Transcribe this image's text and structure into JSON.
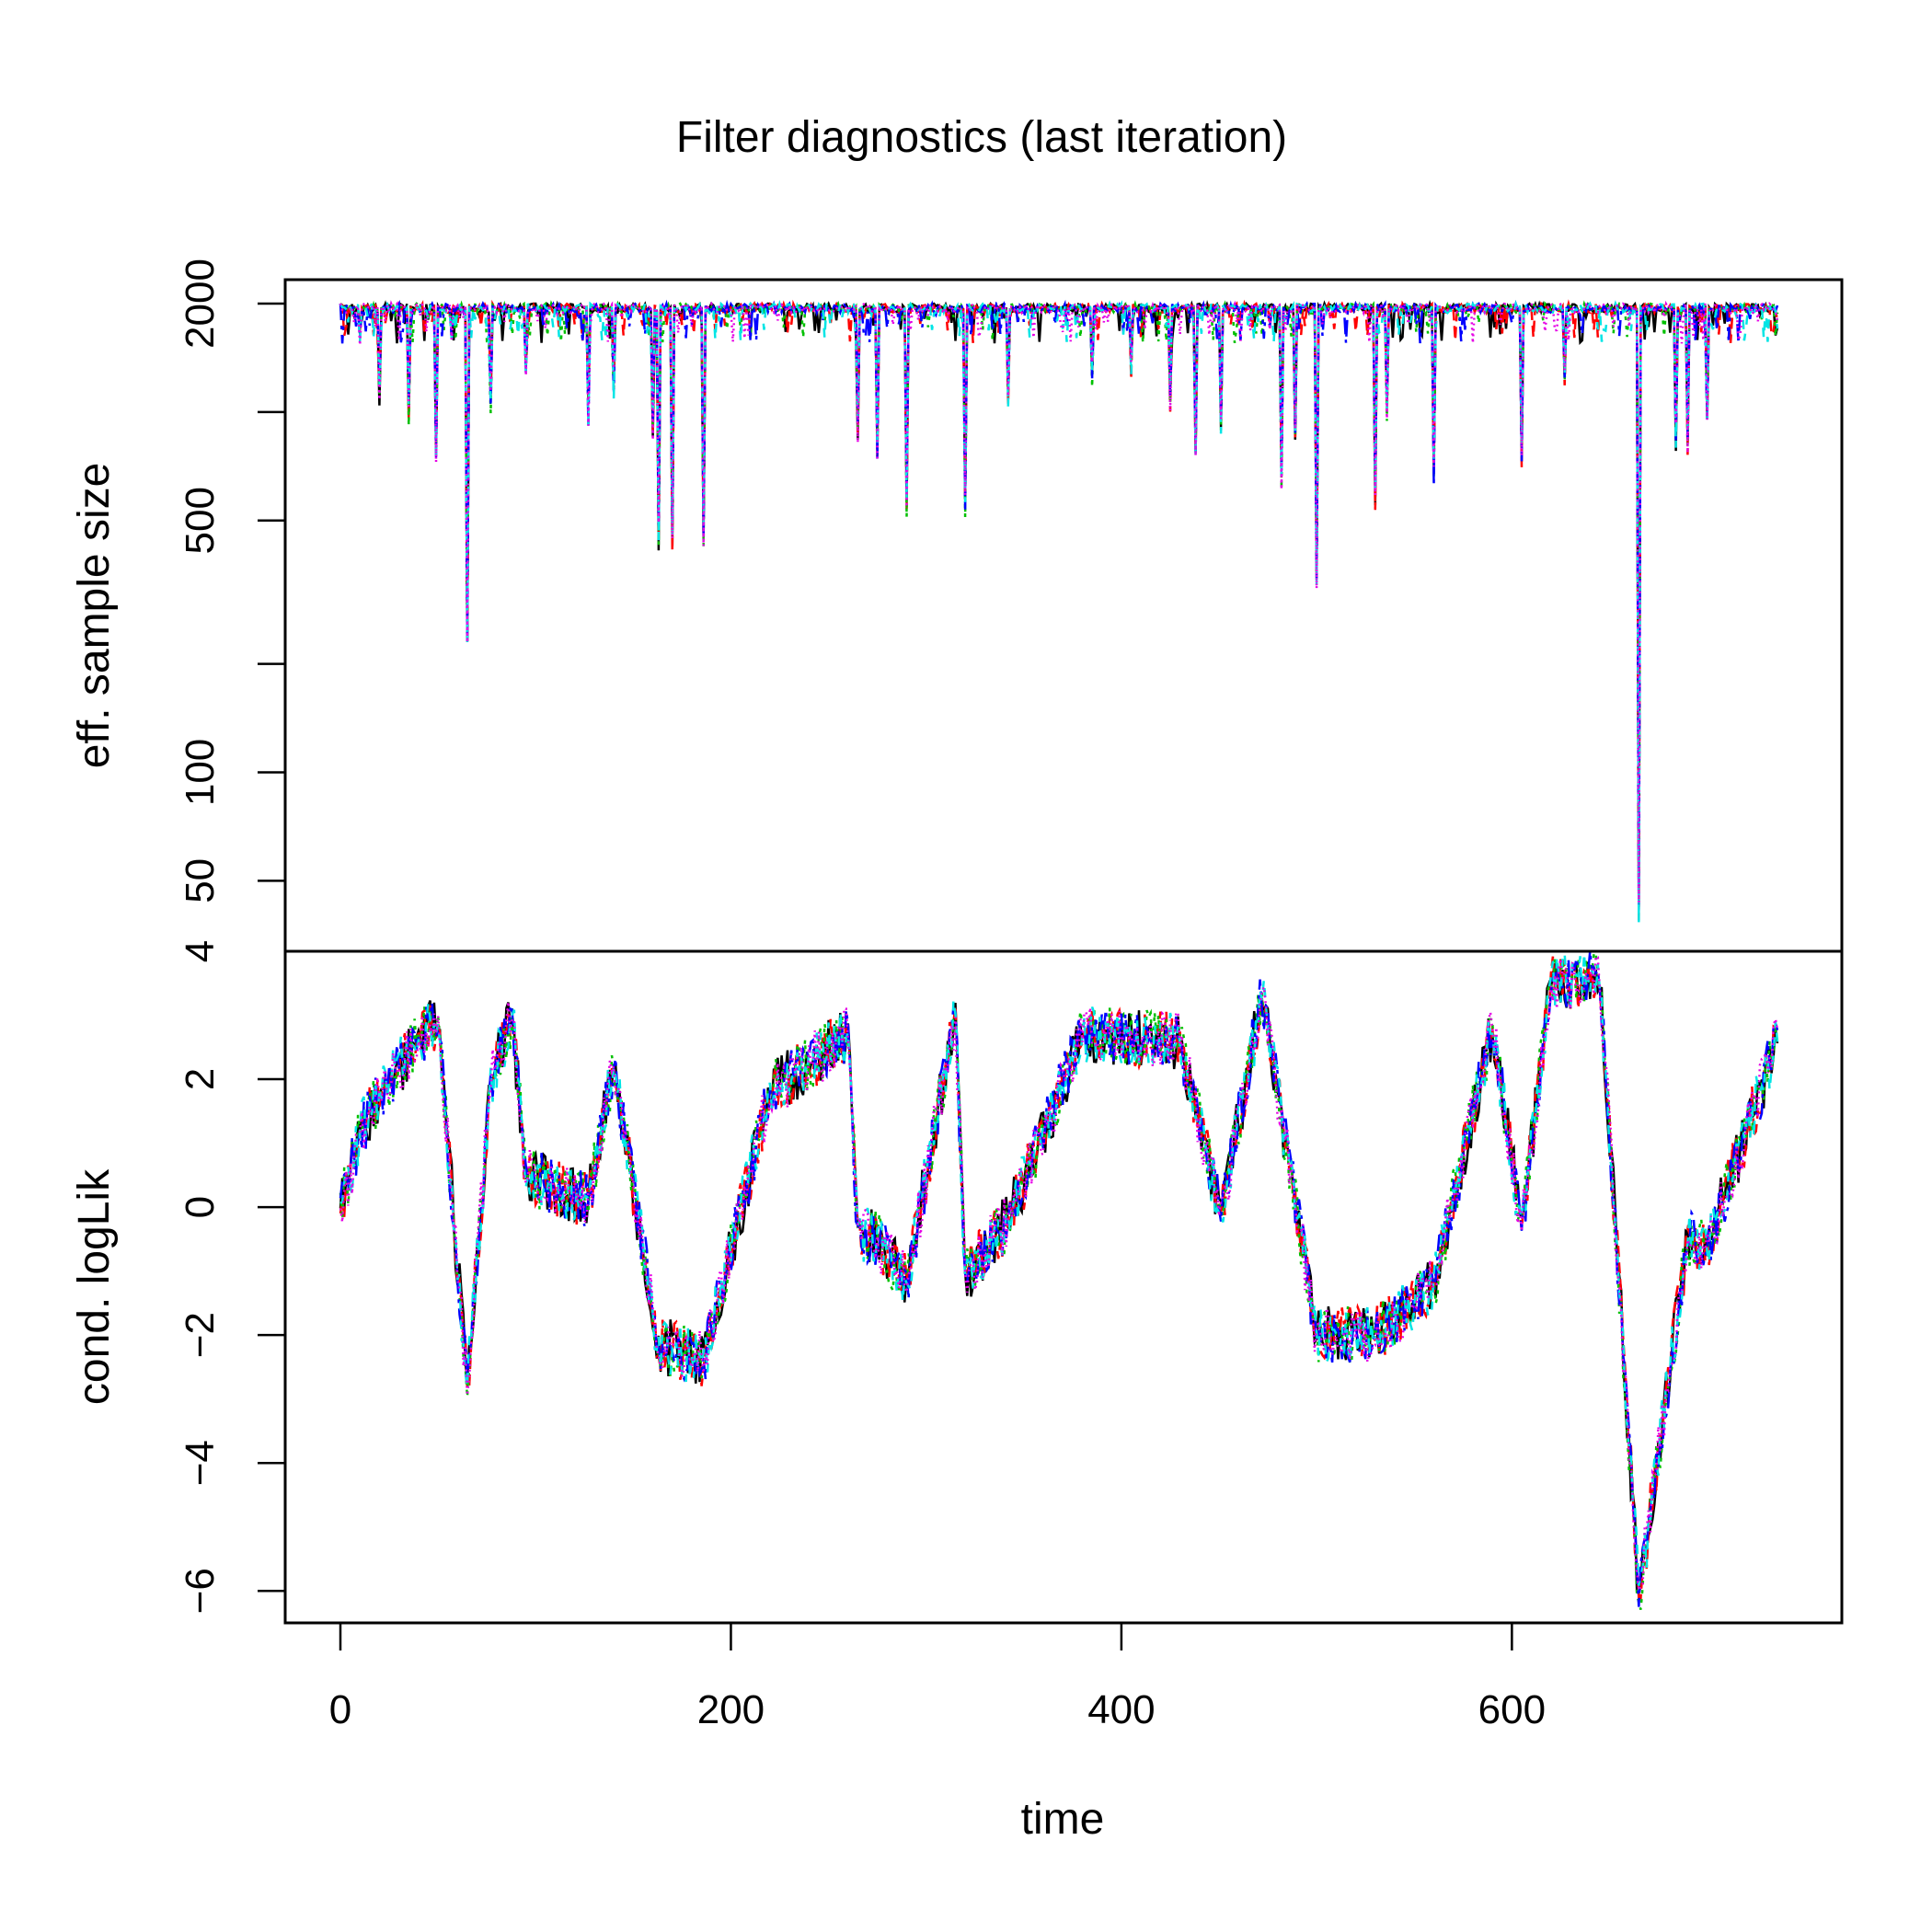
{
  "title": "Filter diagnostics (last iteration)",
  "colors": [
    "#000000",
    "#ff0000",
    "#00c000",
    "#0000ff",
    "#00e5e5",
    "#e500e5"
  ],
  "chart_data": [
    {
      "type": "line",
      "panel": "top",
      "ylabel": "eff. sample size",
      "xlabel": "",
      "yscale": "log",
      "xlim": [
        0,
        736
      ],
      "ylim": [
        38,
        2000
      ],
      "yticks": [
        50,
        100,
        500,
        2000
      ],
      "yticks_minor": [
        200,
        1000
      ],
      "yticks_labels": [
        "50",
        "100",
        "500",
        "2000"
      ],
      "extra_tick_label": "4",
      "baseline_range": [
        1550,
        2000
      ],
      "legend": "none",
      "grid": false,
      "series_count": 6,
      "notable_points": [
        {
          "x": 0,
          "y": 1990
        },
        {
          "x": 10,
          "y": 1600
        },
        {
          "x": 20,
          "y": 1150
        },
        {
          "x": 35,
          "y": 1000
        },
        {
          "x": 49,
          "y": 800
        },
        {
          "x": 65,
          "y": 230
        },
        {
          "x": 77,
          "y": 1050
        },
        {
          "x": 95,
          "y": 1250
        },
        {
          "x": 127,
          "y": 1000
        },
        {
          "x": 140,
          "y": 1200
        },
        {
          "x": 160,
          "y": 900
        },
        {
          "x": 163,
          "y": 450
        },
        {
          "x": 170,
          "y": 450
        },
        {
          "x": 186,
          "y": 460
        },
        {
          "x": 265,
          "y": 900
        },
        {
          "x": 275,
          "y": 750
        },
        {
          "x": 290,
          "y": 560
        },
        {
          "x": 320,
          "y": 560
        },
        {
          "x": 342,
          "y": 1100
        },
        {
          "x": 385,
          "y": 1300
        },
        {
          "x": 405,
          "y": 1350
        },
        {
          "x": 425,
          "y": 1100
        },
        {
          "x": 438,
          "y": 780
        },
        {
          "x": 451,
          "y": 950
        },
        {
          "x": 482,
          "y": 650
        },
        {
          "x": 489,
          "y": 900
        },
        {
          "x": 500,
          "y": 330
        },
        {
          "x": 530,
          "y": 590
        },
        {
          "x": 536,
          "y": 1000
        },
        {
          "x": 560,
          "y": 680
        },
        {
          "x": 605,
          "y": 780
        },
        {
          "x": 627,
          "y": 1300
        },
        {
          "x": 665,
          "y": 40
        },
        {
          "x": 684,
          "y": 850
        },
        {
          "x": 690,
          "y": 830
        },
        {
          "x": 700,
          "y": 880
        },
        {
          "x": 736,
          "y": 1800
        }
      ]
    },
    {
      "type": "line",
      "panel": "bottom",
      "ylabel": "cond. logLik",
      "xlabel": "time",
      "xlim": [
        0,
        736
      ],
      "xticks": [
        0,
        200,
        400,
        600
      ],
      "ylim": [
        -6.5,
        4
      ],
      "yticks": [
        -6,
        -4,
        -2,
        0,
        2
      ],
      "legend": "none",
      "grid": false,
      "series_count": 6,
      "notable_points": [
        {
          "x": 0,
          "y": 0.1
        },
        {
          "x": 5,
          "y": 0.5
        },
        {
          "x": 10,
          "y": 1.2
        },
        {
          "x": 20,
          "y": 1.7
        },
        {
          "x": 30,
          "y": 2.2
        },
        {
          "x": 40,
          "y": 2.6
        },
        {
          "x": 50,
          "y": 2.9
        },
        {
          "x": 65,
          "y": -2.8
        },
        {
          "x": 77,
          "y": 2.0
        },
        {
          "x": 88,
          "y": 3.0
        },
        {
          "x": 95,
          "y": 0.5
        },
        {
          "x": 127,
          "y": 0.1
        },
        {
          "x": 140,
          "y": 2.2
        },
        {
          "x": 163,
          "y": -2.2
        },
        {
          "x": 170,
          "y": -2.2
        },
        {
          "x": 186,
          "y": -2.4
        },
        {
          "x": 220,
          "y": 1.8
        },
        {
          "x": 260,
          "y": 2.7
        },
        {
          "x": 265,
          "y": -0.4
        },
        {
          "x": 275,
          "y": -0.5
        },
        {
          "x": 290,
          "y": -1.2
        },
        {
          "x": 315,
          "y": 3.0
        },
        {
          "x": 320,
          "y": -1.1
        },
        {
          "x": 342,
          "y": -0.2
        },
        {
          "x": 380,
          "y": 2.7
        },
        {
          "x": 430,
          "y": 2.6
        },
        {
          "x": 451,
          "y": -0.1
        },
        {
          "x": 472,
          "y": 3.3
        },
        {
          "x": 500,
          "y": -2.0
        },
        {
          "x": 530,
          "y": -2.0
        },
        {
          "x": 560,
          "y": -1.2
        },
        {
          "x": 590,
          "y": 2.8
        },
        {
          "x": 605,
          "y": -0.3
        },
        {
          "x": 620,
          "y": 3.5
        },
        {
          "x": 645,
          "y": 3.6
        },
        {
          "x": 665,
          "y": -6.1
        },
        {
          "x": 690,
          "y": -0.5
        },
        {
          "x": 700,
          "y": -0.6
        },
        {
          "x": 736,
          "y": 2.6
        }
      ]
    }
  ]
}
